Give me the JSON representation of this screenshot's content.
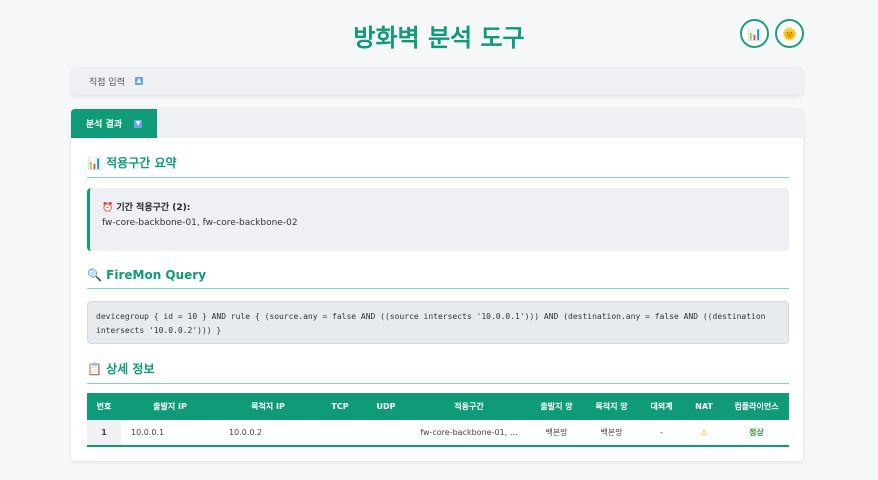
{
  "header": {
    "title": "방화벽 분석 도구",
    "icons": [
      "chart-icon",
      "sun-icon"
    ]
  },
  "input_section": {
    "label": "직접 입력",
    "toggle": "▲"
  },
  "results_tab": {
    "label": "분석 결과",
    "toggle": "▼"
  },
  "summary": {
    "heading": "적용구간 요약",
    "box_title": "기간 적용구간 (2):",
    "box_text": "fw-core-backbone-01, fw-core-backbone-02"
  },
  "query": {
    "heading": "FireMon Query",
    "text": "devicegroup { id = 10 } AND rule { (source.any = false AND ((source intersects '10.0.0.1'))) AND (destination.any = false AND ((destination intersects '10.0.0.2'))) }"
  },
  "details": {
    "heading": "상세 정보",
    "columns": [
      "번호",
      "출발지 IP",
      "목적지 IP",
      "TCP",
      "UDP",
      "적용구간",
      "출발지 망",
      "목적지 망",
      "대외계",
      "NAT",
      "컴플라이언스"
    ],
    "rows": [
      {
        "no": "1",
        "src": "10.0.0.1",
        "dst": "10.0.0.2",
        "tcp": "",
        "udp": "",
        "zone": "fw-core-backbone-01, …",
        "src_net": "백본망",
        "dst_net": "백본망",
        "external": "-",
        "nat": "⚠",
        "compliance": "정상"
      }
    ]
  },
  "colors": {
    "accent": "#0f9a78",
    "ok": "#2e9a3a",
    "warn": "#f0b400"
  }
}
